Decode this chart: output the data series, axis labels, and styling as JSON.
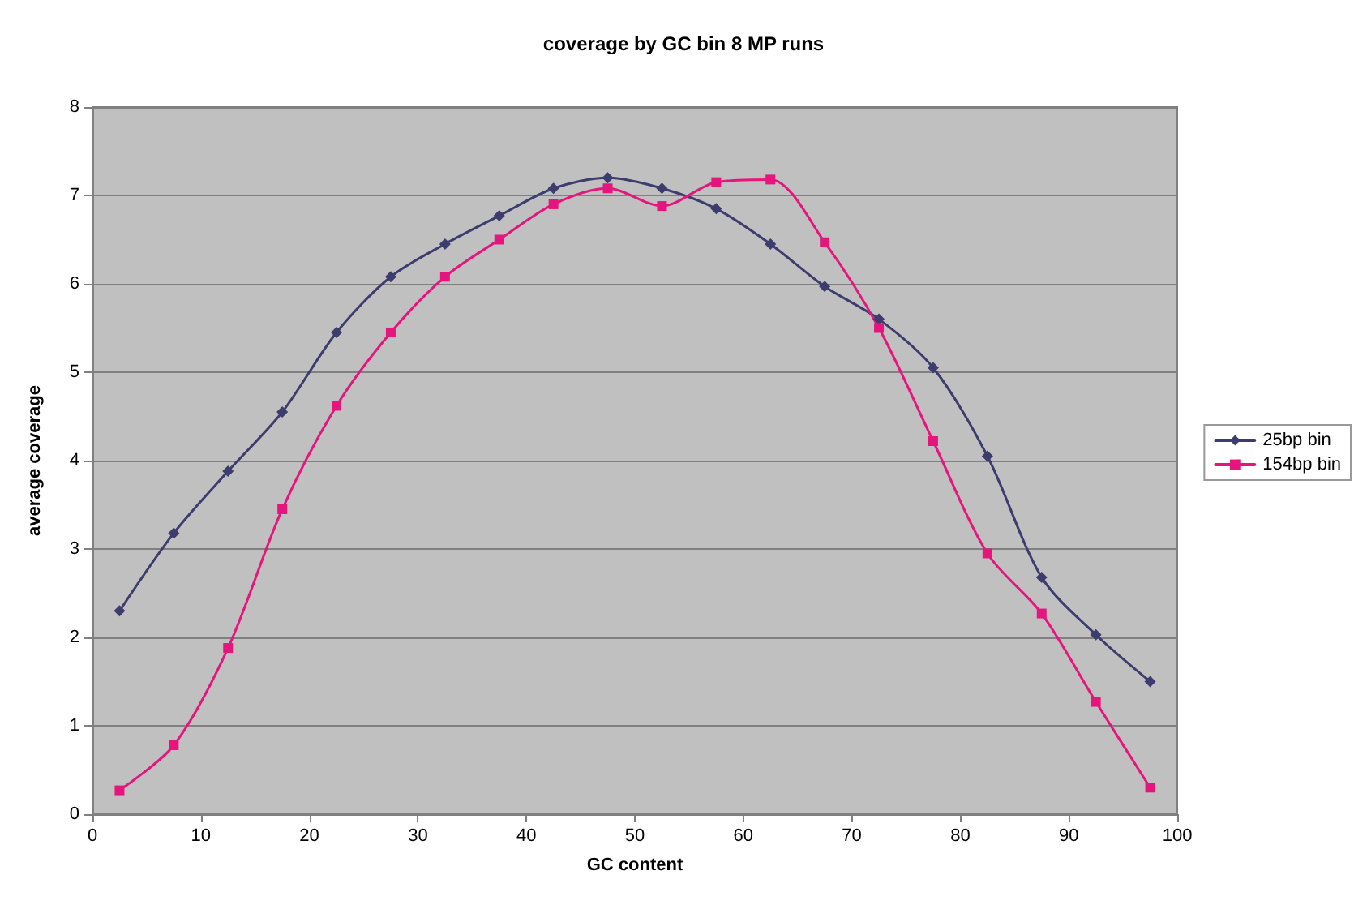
{
  "chart_data": {
    "type": "line",
    "title": "coverage by GC bin 8 MP runs",
    "xlabel": "GC content",
    "ylabel": "average coverage",
    "x": [
      2.5,
      7.5,
      12.5,
      17.5,
      22.5,
      27.5,
      32.5,
      37.5,
      42.5,
      47.5,
      52.5,
      57.5,
      62.5,
      67.5,
      72.5,
      77.5,
      82.5,
      87.5,
      92.5,
      97.5
    ],
    "series": [
      {
        "name": "25bp bin",
        "color": "#3c3c6e",
        "marker": "diamond",
        "values": [
          2.3,
          3.18,
          3.88,
          4.55,
          5.45,
          6.08,
          6.45,
          6.77,
          7.08,
          7.2,
          7.08,
          6.85,
          6.45,
          5.97,
          5.6,
          5.05,
          4.05,
          2.68,
          2.03,
          1.5
        ]
      },
      {
        "name": "154bp bin",
        "color": "#e6157d",
        "marker": "square",
        "values": [
          0.27,
          0.78,
          1.88,
          3.45,
          4.62,
          5.45,
          6.08,
          6.5,
          6.9,
          7.08,
          6.88,
          7.15,
          7.18,
          6.47,
          5.5,
          4.22,
          2.95,
          2.27,
          1.27,
          0.3
        ]
      }
    ],
    "xlim": [
      0,
      100
    ],
    "xticks": [
      0,
      10,
      20,
      30,
      40,
      50,
      60,
      70,
      80,
      90,
      100
    ],
    "ylim": [
      0,
      8
    ],
    "yticks": [
      0,
      1,
      2,
      3,
      4,
      5,
      6,
      7,
      8
    ],
    "grid": "y",
    "legend": "right",
    "line_style": "solid"
  }
}
